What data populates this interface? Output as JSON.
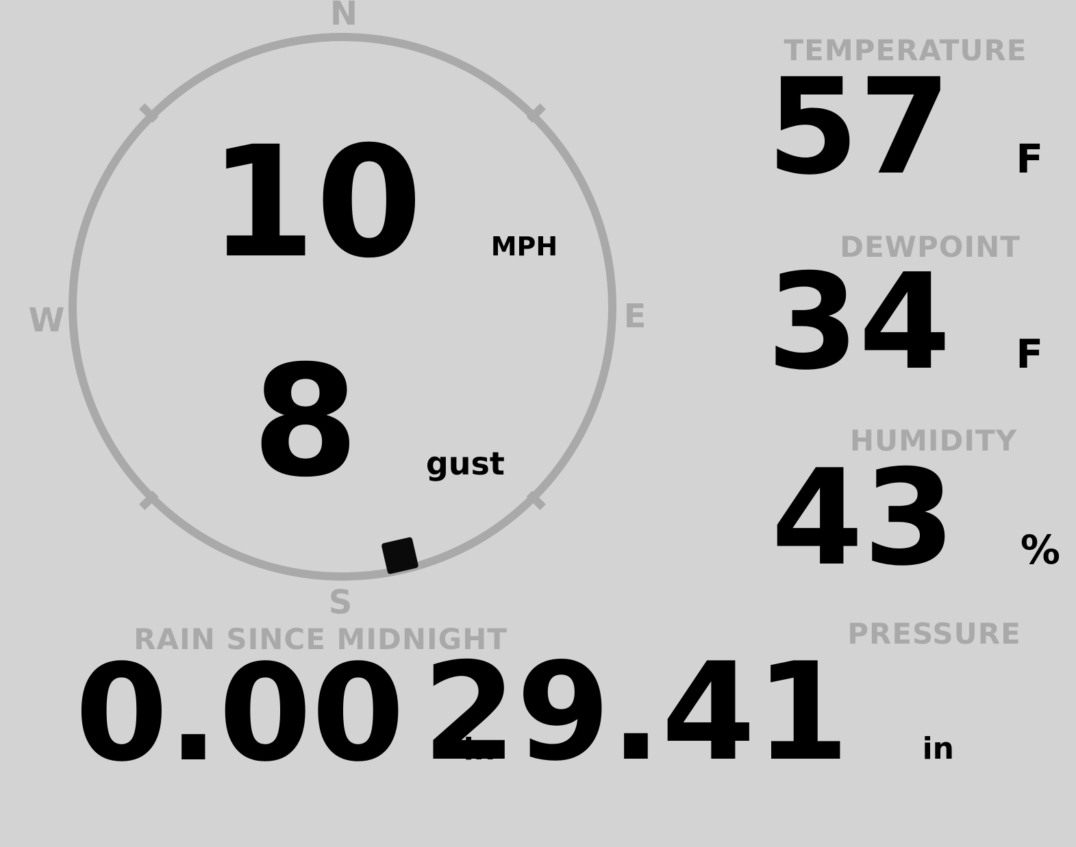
{
  "display": {
    "background": "#d3d3d3",
    "muted": "#a9a9a9",
    "ink": "#000000",
    "marker_color": "#0a0a0a"
  },
  "compass": {
    "cardinals": {
      "north": "N",
      "east": "E",
      "south": "S",
      "west": "W"
    },
    "wind_speed": {
      "value": "10",
      "unit": "MPH"
    },
    "wind_gust": {
      "value": "8",
      "unit": "gust"
    },
    "wind_direction_deg": 167
  },
  "metrics": {
    "temperature": {
      "label": "TEMPERATURE",
      "value": "57",
      "unit": "F"
    },
    "dewpoint": {
      "label": "DEWPOINT",
      "value": "34",
      "unit": "F"
    },
    "humidity": {
      "label": "HUMIDITY",
      "value": "43",
      "unit": "%"
    },
    "rain": {
      "label": "RAIN SINCE MIDNIGHT",
      "value": "0.00",
      "unit": "in"
    },
    "pressure": {
      "label": "PRESSURE",
      "value": "29.41",
      "unit": "in"
    }
  }
}
